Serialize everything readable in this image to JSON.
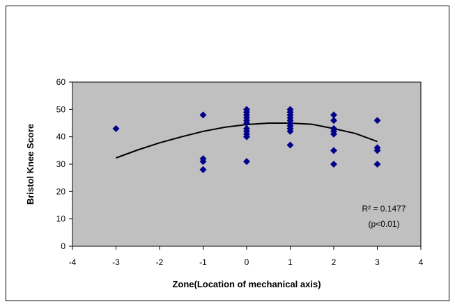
{
  "chart_data": {
    "type": "scatter",
    "title": "",
    "xlabel": "Zone(Location of mechanical axis)",
    "ylabel": "Bristol Knee Score",
    "xlim": [
      -4,
      4
    ],
    "ylim": [
      0,
      60
    ],
    "x_ticks": [
      "-4",
      "-3",
      "-2",
      "-1",
      "0",
      "1",
      "2",
      "3",
      "4"
    ],
    "y_ticks": [
      "0",
      "10",
      "20",
      "30",
      "40",
      "50",
      "60"
    ],
    "plot_background": "#c0c0c0",
    "marker_color": "#00008b",
    "grid": false,
    "points": [
      {
        "x": -3,
        "y": 43
      },
      {
        "x": -1,
        "y": 48
      },
      {
        "x": -1,
        "y": 32
      },
      {
        "x": -1,
        "y": 31
      },
      {
        "x": -1,
        "y": 28
      },
      {
        "x": 0,
        "y": 50
      },
      {
        "x": 0,
        "y": 49
      },
      {
        "x": 0,
        "y": 48
      },
      {
        "x": 0,
        "y": 47
      },
      {
        "x": 0,
        "y": 46
      },
      {
        "x": 0,
        "y": 45
      },
      {
        "x": 0,
        "y": 43
      },
      {
        "x": 0,
        "y": 42
      },
      {
        "x": 0,
        "y": 41
      },
      {
        "x": 0,
        "y": 40
      },
      {
        "x": 0,
        "y": 31
      },
      {
        "x": 1,
        "y": 50
      },
      {
        "x": 1,
        "y": 49
      },
      {
        "x": 1,
        "y": 48
      },
      {
        "x": 1,
        "y": 47
      },
      {
        "x": 1,
        "y": 46
      },
      {
        "x": 1,
        "y": 45
      },
      {
        "x": 1,
        "y": 44
      },
      {
        "x": 1,
        "y": 43
      },
      {
        "x": 1,
        "y": 42
      },
      {
        "x": 1,
        "y": 37
      },
      {
        "x": 2,
        "y": 48
      },
      {
        "x": 2,
        "y": 46
      },
      {
        "x": 2,
        "y": 43
      },
      {
        "x": 2,
        "y": 42
      },
      {
        "x": 2,
        "y": 41
      },
      {
        "x": 2,
        "y": 35
      },
      {
        "x": 2,
        "y": 30
      },
      {
        "x": 3,
        "y": 46
      },
      {
        "x": 3,
        "y": 36
      },
      {
        "x": 3,
        "y": 35
      },
      {
        "x": 3,
        "y": 30
      }
    ],
    "trendline": {
      "type": "polynomial-2",
      "x": [
        -3,
        -2.5,
        -2,
        -1.5,
        -1,
        -0.5,
        0,
        0.5,
        1,
        1.5,
        2,
        2.5,
        3
      ],
      "y": [
        32.3,
        35.2,
        37.8,
        40.0,
        42.0,
        43.5,
        44.5,
        45.0,
        45.0,
        44.6,
        43.0,
        41.2,
        38.3
      ]
    },
    "annotations": [
      "R² = 0.1477",
      "(p<0.01)"
    ]
  }
}
